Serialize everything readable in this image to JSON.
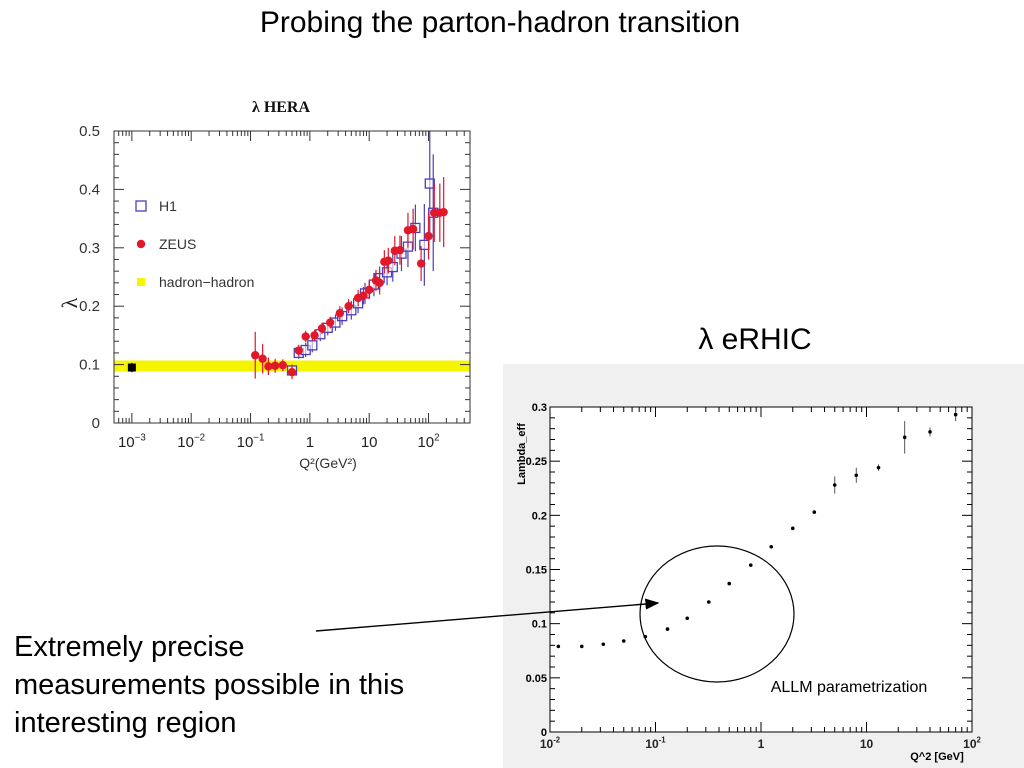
{
  "slide": {
    "title": "Probing the parton-hadron transition",
    "erhic_title": "λ eRHIC",
    "callout_lines": [
      "Extremely precise",
      "measurements possible in this",
      "interesting region"
    ]
  },
  "chart_data": [
    {
      "type": "scatter",
      "title": "λ HERA",
      "xlabel": "Q²(GeV²)",
      "ylabel": "λ",
      "xscale": "log",
      "xlim": [
        0.0005,
        500
      ],
      "ylim": [
        0,
        0.5
      ],
      "yticks": [
        "0",
        "0.1",
        "0.2",
        "0.3",
        "0.4",
        "0.5"
      ],
      "xticks": [
        {
          "value": 0.001,
          "base": "10",
          "exp": "−3"
        },
        {
          "value": 0.01,
          "base": "10",
          "exp": "−2"
        },
        {
          "value": 0.1,
          "base": "10",
          "exp": "−1"
        },
        {
          "value": 1,
          "base": "1",
          "exp": ""
        },
        {
          "value": 10,
          "base": "10",
          "exp": ""
        },
        {
          "value": 100,
          "base": "10",
          "exp": "2"
        }
      ],
      "legend": {
        "placement": "top-left",
        "entries": [
          {
            "name": "H1",
            "marker": "open-square",
            "color": "#4b3fb8"
          },
          {
            "name": "ZEUS",
            "marker": "filled-circle",
            "color": "#e0182a"
          },
          {
            "name": "hadron−hadron",
            "marker": "filled-square",
            "color": "#f5f500"
          }
        ]
      },
      "band": {
        "name": "hadron−hadron",
        "y_low": 0.088,
        "y_high": 0.107,
        "color": "#f5f500"
      },
      "hadron_point": {
        "x": 0.001,
        "y": 0.095,
        "err": 0.008
      },
      "series": [
        {
          "name": "H1",
          "marker": "open-square",
          "color": "#4b3fb8",
          "points": [
            {
              "x": 0.5,
              "y": 0.09,
              "err": 0.01
            },
            {
              "x": 0.65,
              "y": 0.12,
              "err": 0.01
            },
            {
              "x": 0.85,
              "y": 0.125,
              "err": 0.012
            },
            {
              "x": 1.1,
              "y": 0.133,
              "err": 0.012
            },
            {
              "x": 1.5,
              "y": 0.152,
              "err": 0.012
            },
            {
              "x": 2.0,
              "y": 0.163,
              "err": 0.013
            },
            {
              "x": 2.7,
              "y": 0.172,
              "err": 0.014
            },
            {
              "x": 3.5,
              "y": 0.183,
              "err": 0.015
            },
            {
              "x": 5.0,
              "y": 0.193,
              "err": 0.016
            },
            {
              "x": 6.5,
              "y": 0.205,
              "err": 0.017
            },
            {
              "x": 8.5,
              "y": 0.222,
              "err": 0.018
            },
            {
              "x": 12,
              "y": 0.237,
              "err": 0.02
            },
            {
              "x": 15,
              "y": 0.248,
              "err": 0.02
            },
            {
              "x": 20,
              "y": 0.258,
              "err": 0.022
            },
            {
              "x": 25,
              "y": 0.267,
              "err": 0.025
            },
            {
              "x": 35,
              "y": 0.29,
              "err": 0.03
            },
            {
              "x": 45,
              "y": 0.302,
              "err": 0.035
            },
            {
              "x": 60,
              "y": 0.334,
              "err": 0.04
            },
            {
              "x": 85,
              "y": 0.305,
              "err": 0.07
            },
            {
              "x": 105,
              "y": 0.41,
              "err": 0.09
            },
            {
              "x": 120,
              "y": 0.36,
              "err": 0.1
            }
          ]
        },
        {
          "name": "ZEUS",
          "marker": "filled-circle",
          "color": "#e0182a",
          "points": [
            {
              "x": 0.12,
              "y": 0.116,
              "err": 0.04
            },
            {
              "x": 0.16,
              "y": 0.11,
              "err": 0.025
            },
            {
              "x": 0.2,
              "y": 0.097,
              "err": 0.015
            },
            {
              "x": 0.26,
              "y": 0.098,
              "err": 0.012
            },
            {
              "x": 0.35,
              "y": 0.099,
              "err": 0.01
            },
            {
              "x": 0.5,
              "y": 0.087,
              "err": 0.012
            },
            {
              "x": 0.65,
              "y": 0.124,
              "err": 0.01
            },
            {
              "x": 0.85,
              "y": 0.148,
              "err": 0.01
            },
            {
              "x": 1.2,
              "y": 0.15,
              "err": 0.01
            },
            {
              "x": 1.6,
              "y": 0.162,
              "err": 0.01
            },
            {
              "x": 2.2,
              "y": 0.172,
              "err": 0.01
            },
            {
              "x": 3.2,
              "y": 0.188,
              "err": 0.012
            },
            {
              "x": 4.5,
              "y": 0.2,
              "err": 0.012
            },
            {
              "x": 6.5,
              "y": 0.214,
              "err": 0.014
            },
            {
              "x": 8.0,
              "y": 0.218,
              "err": 0.015
            },
            {
              "x": 10,
              "y": 0.228,
              "err": 0.016
            },
            {
              "x": 13,
              "y": 0.244,
              "err": 0.018
            },
            {
              "x": 15,
              "y": 0.24,
              "err": 0.02
            },
            {
              "x": 18,
              "y": 0.276,
              "err": 0.02
            },
            {
              "x": 21,
              "y": 0.278,
              "err": 0.022
            },
            {
              "x": 27,
              "y": 0.295,
              "err": 0.025
            },
            {
              "x": 33,
              "y": 0.296,
              "err": 0.025
            },
            {
              "x": 45,
              "y": 0.33,
              "err": 0.03
            },
            {
              "x": 55,
              "y": 0.332,
              "err": 0.035
            },
            {
              "x": 75,
              "y": 0.273,
              "err": 0.03
            },
            {
              "x": 100,
              "y": 0.32,
              "err": 0.04
            },
            {
              "x": 125,
              "y": 0.36,
              "err": 0.05
            },
            {
              "x": 155,
              "y": 0.36,
              "err": 0.05
            },
            {
              "x": 180,
              "y": 0.361,
              "err": 0.06
            }
          ]
        }
      ]
    },
    {
      "type": "scatter",
      "title": "",
      "xlabel": "Q^2 [GeV]",
      "ylabel": "Lambda_eff",
      "xscale": "log",
      "xlim": [
        0.01,
        100
      ],
      "ylim": [
        0,
        0.3
      ],
      "yticks": [
        "0",
        "0.05",
        "0.1",
        "0.15",
        "0.2",
        "0.25",
        "0.3"
      ],
      "xticks": [
        {
          "value": 0.01,
          "base": "10",
          "exp": "-2"
        },
        {
          "value": 0.1,
          "base": "10",
          "exp": "-1"
        },
        {
          "value": 1,
          "base": "1",
          "exp": ""
        },
        {
          "value": 10,
          "base": "10",
          "exp": ""
        },
        {
          "value": 100,
          "base": "10",
          "exp": "2"
        }
      ],
      "annotation": "ALLM parametrization",
      "series": [
        {
          "name": "",
          "marker": "dot",
          "color": "#000000",
          "points": [
            {
              "x": 0.012,
              "y": 0.079,
              "err": 0
            },
            {
              "x": 0.02,
              "y": 0.079,
              "err": 0
            },
            {
              "x": 0.032,
              "y": 0.081,
              "err": 0
            },
            {
              "x": 0.05,
              "y": 0.084,
              "err": 0
            },
            {
              "x": 0.08,
              "y": 0.088,
              "err": 0
            },
            {
              "x": 0.13,
              "y": 0.095,
              "err": 0
            },
            {
              "x": 0.2,
              "y": 0.105,
              "err": 0
            },
            {
              "x": 0.32,
              "y": 0.12,
              "err": 0
            },
            {
              "x": 0.5,
              "y": 0.137,
              "err": 0
            },
            {
              "x": 0.8,
              "y": 0.154,
              "err": 0
            },
            {
              "x": 1.25,
              "y": 0.171,
              "err": 0
            },
            {
              "x": 2.0,
              "y": 0.188,
              "err": 0
            },
            {
              "x": 3.2,
              "y": 0.203,
              "err": 0
            },
            {
              "x": 5.0,
              "y": 0.228,
              "err": 0.008
            },
            {
              "x": 8.0,
              "y": 0.237,
              "err": 0.007
            },
            {
              "x": 13,
              "y": 0.244,
              "err": 0.003
            },
            {
              "x": 23,
              "y": 0.272,
              "err": 0.015
            },
            {
              "x": 40,
              "y": 0.277,
              "err": 0.004
            },
            {
              "x": 70,
              "y": 0.293,
              "err": 0.006
            }
          ]
        }
      ]
    }
  ]
}
